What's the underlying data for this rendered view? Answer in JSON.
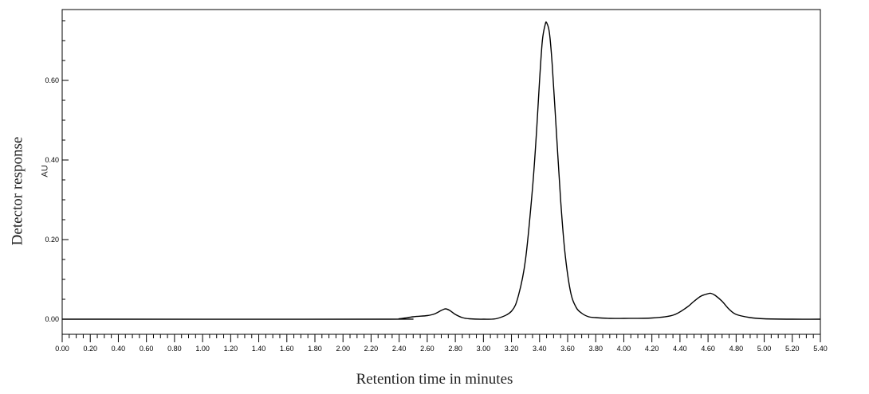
{
  "chart_data": {
    "type": "line",
    "xlabel": "Retention time in minutes",
    "ylabel": "Detector response",
    "yunit": "AU",
    "xlim": [
      0.0,
      5.4
    ],
    "ylim": [
      -0.04,
      0.78
    ],
    "x_ticks": [
      "0.00",
      "0.20",
      "0.40",
      "0.60",
      "0.80",
      "1.00",
      "1.20",
      "1.40",
      "1.60",
      "1.80",
      "2.00",
      "2.20",
      "2.40",
      "2.60",
      "2.80",
      "3.00",
      "3.20",
      "3.40",
      "3.60",
      "3.80",
      "4.00",
      "4.20",
      "4.40",
      "4.60",
      "4.80",
      "5.00",
      "5.20",
      "5.40"
    ],
    "y_ticks": [
      "0.00",
      "0.20",
      "0.40",
      "0.60"
    ],
    "grid": false,
    "series": [
      {
        "values_desc": "chromatogram trace",
        "x": [
          0.0,
          2.3,
          2.4,
          2.5,
          2.6,
          2.65,
          2.7,
          2.73,
          2.76,
          2.8,
          2.85,
          2.9,
          3.0,
          3.1,
          3.2,
          3.25,
          3.3,
          3.35,
          3.38,
          3.4,
          3.42,
          3.44,
          3.45,
          3.47,
          3.49,
          3.52,
          3.55,
          3.58,
          3.62,
          3.66,
          3.7,
          3.75,
          3.8,
          3.9,
          4.0,
          4.2,
          4.35,
          4.45,
          4.5,
          4.55,
          4.6,
          4.62,
          4.65,
          4.7,
          4.75,
          4.8,
          4.9,
          5.0,
          5.2,
          5.4
        ],
        "y": [
          0.0,
          0.0,
          0.001,
          0.006,
          0.009,
          0.013,
          0.022,
          0.026,
          0.022,
          0.012,
          0.004,
          0.001,
          0.0,
          0.002,
          0.02,
          0.06,
          0.15,
          0.33,
          0.48,
          0.6,
          0.7,
          0.74,
          0.745,
          0.72,
          0.64,
          0.47,
          0.3,
          0.17,
          0.07,
          0.03,
          0.015,
          0.006,
          0.004,
          0.002,
          0.002,
          0.003,
          0.01,
          0.03,
          0.045,
          0.058,
          0.064,
          0.065,
          0.06,
          0.045,
          0.025,
          0.012,
          0.004,
          0.001,
          0.0,
          0.0
        ]
      }
    ]
  }
}
